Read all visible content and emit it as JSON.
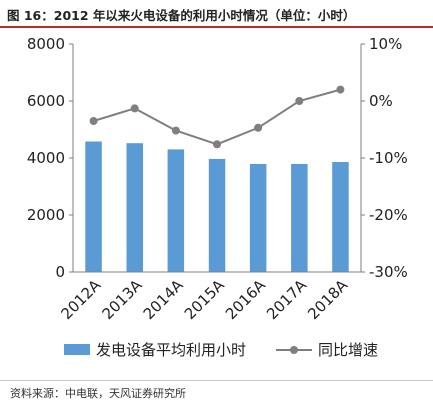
{
  "header": {
    "title": "图 16：2012 年以来火电设备的利用小时情况（单位：小时）"
  },
  "footer": {
    "source": "资料来源：中电联，天风证券研究所"
  },
  "chart_data": {
    "type": "bar",
    "categories": [
      "2012A",
      "2013A",
      "2014A",
      "2015A",
      "2016A",
      "2017A",
      "2018A"
    ],
    "series": [
      {
        "name": "发电设备平均利用小时",
        "type": "bar",
        "axis": "left",
        "values": [
          4580,
          4520,
          4300,
          3970,
          3790,
          3790,
          3860
        ],
        "color": "#5b9bd5"
      },
      {
        "name": "同比增速",
        "type": "line",
        "axis": "right",
        "values": [
          -3.5,
          -1.3,
          -5.2,
          -7.6,
          -4.7,
          0.0,
          2.0
        ],
        "color": "#7f7f7f"
      }
    ],
    "y_left": {
      "ylim": [
        0,
        8000
      ],
      "ticks": [
        "0",
        "2000",
        "4000",
        "6000",
        "8000"
      ]
    },
    "y_right": {
      "ylim": [
        -30,
        10
      ],
      "ticks": [
        "-30%",
        "-20%",
        "-10%",
        "0%",
        "10%"
      ]
    },
    "grid": false,
    "legend": "bottom"
  }
}
